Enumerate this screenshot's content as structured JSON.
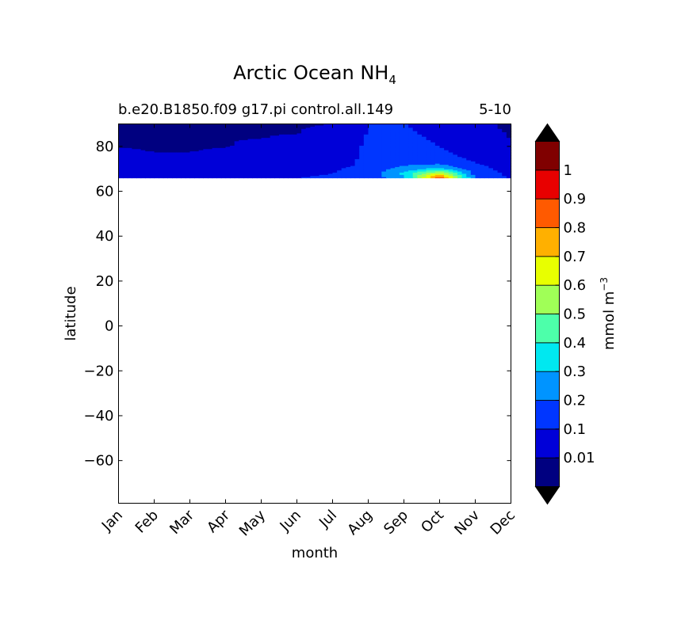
{
  "chart_data": {
    "type": "heatmap",
    "title": "Arctic Ocean NH",
    "title_subscript": "4",
    "subtitle_left": "b.e20.B1850.f09 g17.pi control.all.149",
    "subtitle_right": "5-10",
    "xlabel": "month",
    "ylabel": "latitude",
    "x_ticks": [
      "Jan",
      "Feb",
      "Mar",
      "Apr",
      "May",
      "Jun",
      "Jul",
      "Aug",
      "Sep",
      "Oct",
      "Nov",
      "Dec"
    ],
    "y_ticks": [
      80,
      60,
      40,
      20,
      0,
      -20,
      -40,
      -60
    ],
    "ylim": [
      -79,
      90
    ],
    "xlim": [
      0,
      11
    ],
    "data_lat_range": [
      66,
      90
    ],
    "colorbar": {
      "label": "mmol m",
      "label_superscript": "−3",
      "tick_labels": [
        "0.01",
        "0.1",
        "0.2",
        "0.3",
        "0.4",
        "0.5",
        "0.6",
        "0.7",
        "0.8",
        "0.9",
        "1"
      ],
      "levels": [
        0,
        0.01,
        0.1,
        0.2,
        0.3,
        0.4,
        0.5,
        0.6,
        0.7,
        0.8,
        0.9,
        1,
        1.1
      ],
      "colors": [
        "#000080",
        "#0000d8",
        "#0036ff",
        "#0094ff",
        "#00e8f0",
        "#4dffaa",
        "#a0ff57",
        "#e8ff00",
        "#ffb000",
        "#ff5a00",
        "#e80000",
        "#800000"
      ],
      "extend": "both",
      "under_color": "#000000",
      "over_color": "#000000"
    },
    "field": {
      "lats": [
        66,
        68,
        70,
        72,
        74,
        76,
        78,
        80,
        82,
        84,
        86,
        88,
        90
      ],
      "values": [
        [
          0.08,
          0.09,
          0.09,
          0.09,
          0.09,
          0.1,
          0.11,
          0.12,
          0.28,
          0.92,
          0.18,
          0.09
        ],
        [
          0.07,
          0.08,
          0.08,
          0.08,
          0.08,
          0.09,
          0.1,
          0.15,
          0.32,
          0.65,
          0.16,
          0.08
        ],
        [
          0.06,
          0.06,
          0.07,
          0.07,
          0.07,
          0.08,
          0.09,
          0.13,
          0.25,
          0.35,
          0.13,
          0.07
        ],
        [
          0.05,
          0.05,
          0.05,
          0.05,
          0.06,
          0.07,
          0.08,
          0.11,
          0.19,
          0.21,
          0.11,
          0.06
        ],
        [
          0.04,
          0.03,
          0.03,
          0.04,
          0.05,
          0.06,
          0.08,
          0.11,
          0.17,
          0.14,
          0.09,
          0.05
        ],
        [
          0.03,
          0.02,
          0.02,
          0.03,
          0.04,
          0.05,
          0.07,
          0.11,
          0.16,
          0.12,
          0.08,
          0.04
        ],
        [
          0.02,
          0.008,
          0.008,
          0.02,
          0.03,
          0.04,
          0.06,
          0.11,
          0.15,
          0.11,
          0.07,
          0.03
        ],
        [
          0.008,
          0.006,
          0.006,
          0.008,
          0.02,
          0.03,
          0.06,
          0.11,
          0.15,
          0.1,
          0.06,
          0.02
        ],
        [
          0.006,
          0.005,
          0.005,
          0.007,
          0.02,
          0.03,
          0.05,
          0.11,
          0.14,
          0.09,
          0.05,
          0.01
        ],
        [
          0.005,
          0.005,
          0.005,
          0.006,
          0.008,
          0.02,
          0.05,
          0.11,
          0.13,
          0.08,
          0.04,
          0.008
        ],
        [
          0.005,
          0.004,
          0.004,
          0.005,
          0.007,
          0.008,
          0.04,
          0.1,
          0.12,
          0.07,
          0.03,
          0.006
        ],
        [
          0.004,
          0.004,
          0.004,
          0.005,
          0.006,
          0.007,
          0.02,
          0.1,
          0.11,
          0.06,
          0.02,
          0.005
        ],
        [
          0.004,
          0.004,
          0.004,
          0.005,
          0.006,
          0.007,
          0.01,
          0.1,
          0.11,
          0.05,
          0.02,
          0.005
        ]
      ]
    }
  }
}
